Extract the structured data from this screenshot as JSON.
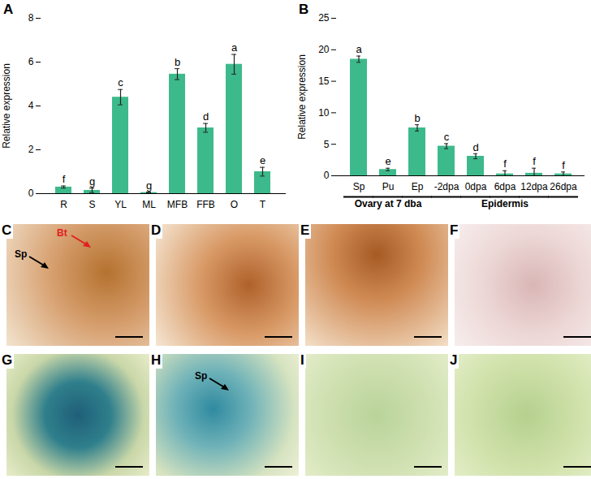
{
  "chart_data": [
    {
      "type": "bar",
      "panel": "A",
      "categories": [
        "R",
        "S",
        "YL",
        "ML",
        "MFB",
        "FFB",
        "O",
        "T"
      ],
      "values": [
        0.3,
        0.15,
        4.4,
        0.05,
        5.45,
        3.0,
        5.9,
        1.0
      ],
      "errors": [
        0.05,
        0.1,
        0.35,
        0.02,
        0.25,
        0.2,
        0.45,
        0.2
      ],
      "letters": [
        "f",
        "g",
        "c",
        "g",
        "b",
        "d",
        "a",
        "e"
      ],
      "color": "#3dba8b",
      "y_label": "Relative expression",
      "ylim": [
        0,
        8
      ],
      "yticks": [
        0,
        2,
        4,
        6,
        8
      ]
    },
    {
      "type": "bar",
      "panel": "B",
      "categories": [
        "Sp",
        "Pu",
        "Ep",
        "-2dpa",
        "0dpa",
        "6dpa",
        "12dpa",
        "26dpa"
      ],
      "values": [
        18.5,
        1.0,
        7.6,
        4.7,
        3.1,
        0.3,
        0.4,
        0.3
      ],
      "errors": [
        0.5,
        0.2,
        0.5,
        0.4,
        0.4,
        0.5,
        0.8,
        0.3
      ],
      "letters": [
        "a",
        "e",
        "b",
        "c",
        "d",
        "f",
        "f",
        "f"
      ],
      "groups": [
        {
          "label": "Ovary at 7 dba",
          "categories": [
            "Sp",
            "Pu",
            "Ep"
          ]
        },
        {
          "label": "Epidermis",
          "categories": [
            "-2dpa",
            "0dpa",
            "6dpa",
            "12dpa",
            "26dpa"
          ]
        }
      ],
      "color": "#3dba8b",
      "y_label": "Relative expression",
      "ylim": [
        0,
        25
      ],
      "yticks": [
        0,
        5,
        10,
        15,
        20,
        25
      ]
    }
  ],
  "panels": [
    {
      "label": "C",
      "annotations": [
        "Bt",
        "Sp"
      ]
    },
    {
      "label": "D"
    },
    {
      "label": "E"
    },
    {
      "label": "F"
    },
    {
      "label": "G"
    },
    {
      "label": "H",
      "annotations": [
        "Sp"
      ]
    },
    {
      "label": "I"
    },
    {
      "label": "J"
    }
  ]
}
